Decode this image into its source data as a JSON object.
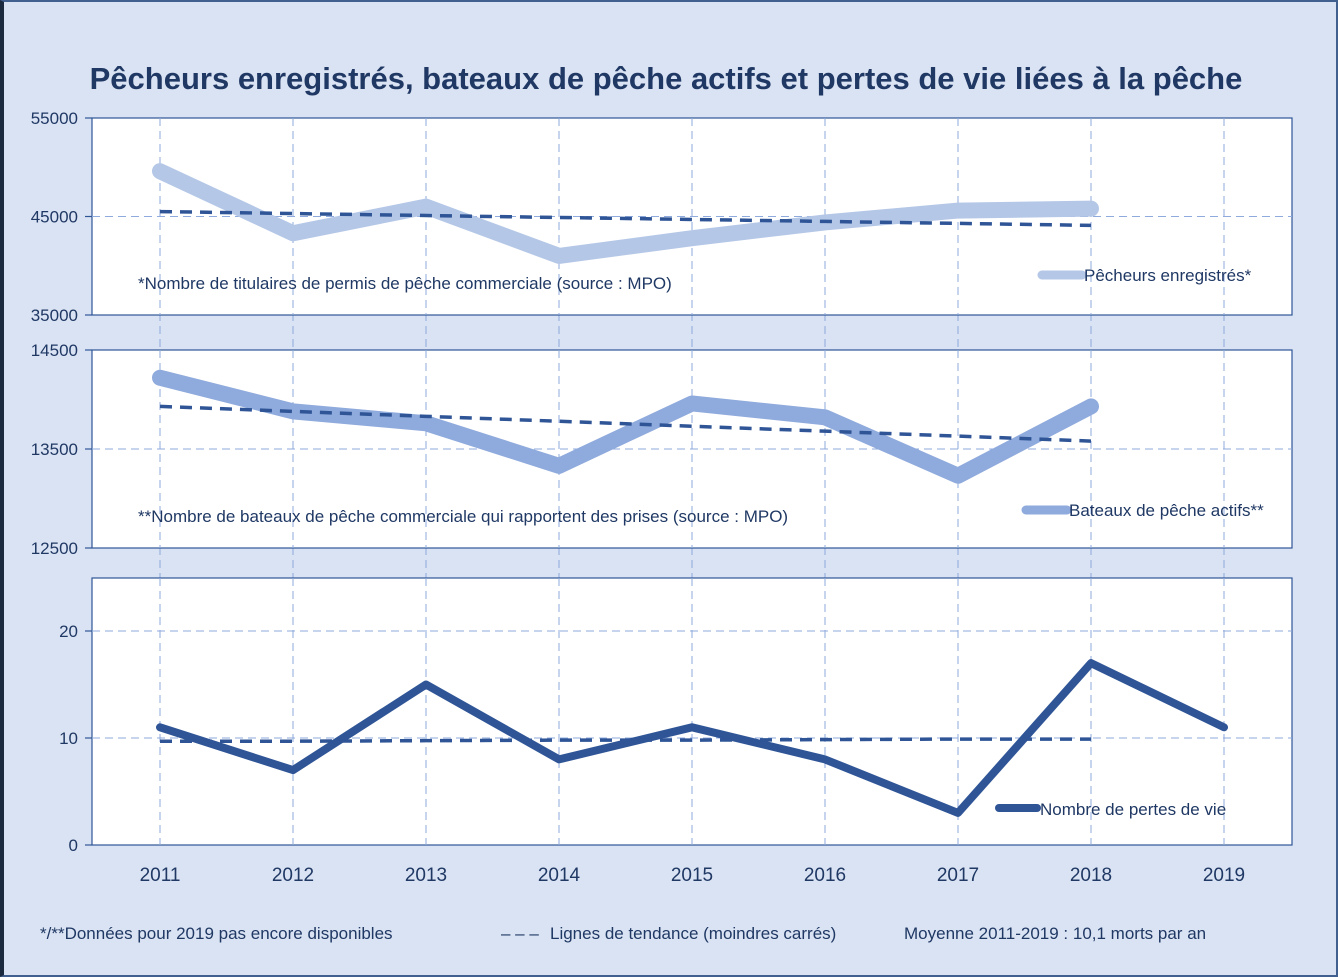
{
  "chart_data": [
    {
      "type": "line",
      "panel": "pecheurs",
      "title": "Pêcheurs enregistrés, bateaux de pêche actifs et pertes de vie liées à la pêche",
      "categories": [
        "2011",
        "2012",
        "2013",
        "2014",
        "2015",
        "2016",
        "2017",
        "2018",
        "2019"
      ],
      "ylim": [
        35000,
        55000
      ],
      "yticks": [
        35000,
        45000,
        55000
      ],
      "ytick_labels": [
        "35000",
        "45000",
        "55000"
      ],
      "grid": true,
      "series": [
        {
          "name": "Pêcheurs enregistrés*",
          "color": "#b4c7e7",
          "values": [
            49600,
            43300,
            46000,
            41000,
            42800,
            44400,
            45600,
            45800,
            null
          ]
        },
        {
          "name": "Tendance",
          "color": "#2f5597",
          "dashed": true,
          "values": [
            45500,
            45300,
            45100,
            44900,
            44700,
            44500,
            44300,
            44100,
            null
          ]
        }
      ],
      "annotation": "*Nombre de titulaires de permis de pêche commerciale (source : MPO)",
      "legend": "Pêcheurs enregistrés*",
      "legend_position": "right"
    },
    {
      "type": "line",
      "panel": "bateaux",
      "categories": [
        "2011",
        "2012",
        "2013",
        "2014",
        "2015",
        "2016",
        "2017",
        "2018",
        "2019"
      ],
      "ylim": [
        12500,
        14500
      ],
      "yticks": [
        12500,
        13500,
        14500
      ],
      "ytick_labels": [
        "12500",
        "13500",
        "14500"
      ],
      "grid": true,
      "series": [
        {
          "name": "Bateaux de pêche actifs**",
          "color": "#8faadc",
          "values": [
            14220,
            13880,
            13760,
            13330,
            13960,
            13820,
            13230,
            13930,
            null
          ]
        },
        {
          "name": "Tendance",
          "color": "#2f5597",
          "dashed": true,
          "values": [
            13930,
            13880,
            13830,
            13780,
            13730,
            13680,
            13630,
            13580,
            null
          ]
        }
      ],
      "annotation": "**Nombre de bateaux de pêche commerciale qui rapportent des prises (source : MPO)",
      "legend": "Bateaux de pêche actifs**",
      "legend_position": "right"
    },
    {
      "type": "line",
      "panel": "pertes",
      "categories": [
        "2011",
        "2012",
        "2013",
        "2014",
        "2015",
        "2016",
        "2017",
        "2018",
        "2019"
      ],
      "ylim": [
        0,
        25
      ],
      "yticks": [
        0,
        10,
        20
      ],
      "ytick_labels": [
        "0",
        "10",
        "20"
      ],
      "grid": true,
      "series": [
        {
          "name": "Nombre de pertes de vie",
          "color": "#2f5597",
          "values": [
            11,
            7,
            15,
            8,
            11,
            8,
            3,
            17,
            11
          ]
        },
        {
          "name": "Tendance",
          "color": "#2f5597",
          "dashed": true,
          "values": [
            9.7,
            9.7,
            9.75,
            9.8,
            9.8,
            9.85,
            9.9,
            9.9,
            null
          ]
        }
      ],
      "legend": "Nombre de pertes de vie",
      "legend_position": "bottom-right"
    }
  ],
  "footer": {
    "note_2019": "*/**Données pour 2019 pas encore disponibles",
    "trend_symbol": "– – –",
    "trend_label": "Lignes de tendance (moindres carrés)",
    "average": "Moyenne 2011-2019 : 10,1 morts par an"
  }
}
